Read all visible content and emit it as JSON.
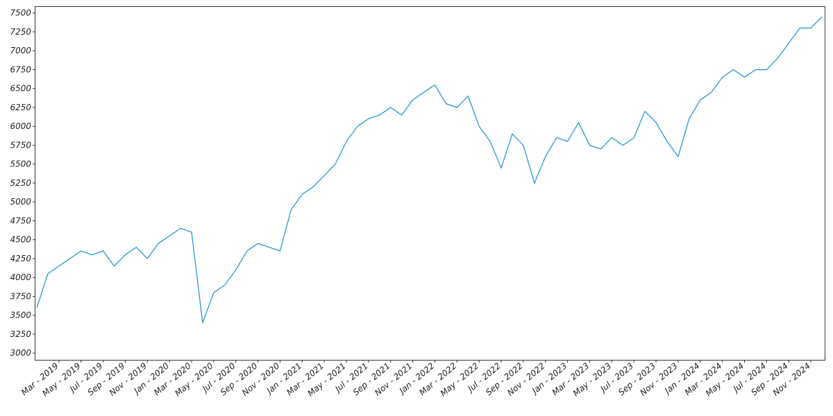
{
  "chart_data": {
    "type": "line",
    "x": [
      "2019-01",
      "2019-02",
      "2019-03",
      "2019-04",
      "2019-05",
      "2019-06",
      "2019-07",
      "2019-08",
      "2019-09",
      "2019-10",
      "2019-11",
      "2019-12",
      "2020-01",
      "2020-02",
      "2020-03",
      "2020-04",
      "2020-05",
      "2020-06",
      "2020-07",
      "2020-08",
      "2020-09",
      "2020-10",
      "2020-11",
      "2020-12",
      "2021-01",
      "2021-02",
      "2021-03",
      "2021-04",
      "2021-05",
      "2021-06",
      "2021-07",
      "2021-08",
      "2021-09",
      "2021-10",
      "2021-11",
      "2021-12",
      "2022-01",
      "2022-02",
      "2022-03",
      "2022-04",
      "2022-05",
      "2022-06",
      "2022-07",
      "2022-08",
      "2022-09",
      "2022-10",
      "2022-11",
      "2022-12",
      "2023-01",
      "2023-02",
      "2023-03",
      "2023-04",
      "2023-05",
      "2023-06",
      "2023-07",
      "2023-08",
      "2023-09",
      "2023-10",
      "2023-11",
      "2023-12",
      "2024-01",
      "2024-02",
      "2024-03",
      "2024-04",
      "2024-05",
      "2024-06",
      "2024-07",
      "2024-08",
      "2024-09",
      "2024-10",
      "2024-11",
      "2024-12"
    ],
    "series": [
      {
        "color": "#1a8fd6",
        "values": [
          3600,
          4050,
          4150,
          4250,
          4350,
          4300,
          4350,
          4150,
          4300,
          4400,
          4250,
          4450,
          4550,
          4650,
          4600,
          3400,
          3800,
          3900,
          4100,
          4350,
          4450,
          4400,
          4350,
          4900,
          5100,
          5200,
          5350,
          5500,
          5800,
          6000,
          6100,
          6150,
          6250,
          6150,
          6350,
          6450,
          6550,
          6300,
          6250,
          6400,
          6000,
          5800,
          5450,
          5900,
          5750,
          5250,
          5600,
          5850,
          5800,
          6050,
          5750,
          5700,
          5850,
          5750,
          5850,
          6200,
          6050,
          5800,
          5600,
          6100,
          6350,
          6450,
          6650,
          6750,
          6650,
          6750,
          6750,
          6900,
          7100,
          7300,
          7300,
          7450
        ]
      }
    ],
    "xlim": [
      "2019-01",
      "2024-12"
    ],
    "xticks": [
      {
        "value": "2019-03",
        "label": "Mar - 2019"
      },
      {
        "value": "2019-05",
        "label": "May - 2019"
      },
      {
        "value": "2019-07",
        "label": "Jul - 2019"
      },
      {
        "value": "2019-09",
        "label": "Sep - 2019"
      },
      {
        "value": "2019-11",
        "label": "Nov - 2019"
      },
      {
        "value": "2020-01",
        "label": "Jan - 2020"
      },
      {
        "value": "2020-03",
        "label": "Mar - 2020"
      },
      {
        "value": "2020-05",
        "label": "May - 2020"
      },
      {
        "value": "2020-07",
        "label": "Jul - 2020"
      },
      {
        "value": "2020-09",
        "label": "Sep - 2020"
      },
      {
        "value": "2020-11",
        "label": "Nov - 2020"
      },
      {
        "value": "2021-01",
        "label": "Jan - 2021"
      },
      {
        "value": "2021-03",
        "label": "Mar - 2021"
      },
      {
        "value": "2021-05",
        "label": "May - 2021"
      },
      {
        "value": "2021-07",
        "label": "Jul - 2021"
      },
      {
        "value": "2021-09",
        "label": "Sep - 2021"
      },
      {
        "value": "2021-11",
        "label": "Nov - 2021"
      },
      {
        "value": "2022-01",
        "label": "Jan - 2022"
      },
      {
        "value": "2022-03",
        "label": "Mar - 2022"
      },
      {
        "value": "2022-05",
        "label": "May - 2022"
      },
      {
        "value": "2022-07",
        "label": "Jul - 2022"
      },
      {
        "value": "2022-09",
        "label": "Sep - 2022"
      },
      {
        "value": "2022-11",
        "label": "Nov - 2022"
      },
      {
        "value": "2023-01",
        "label": "Jan - 2023"
      },
      {
        "value": "2023-03",
        "label": "Mar - 2023"
      },
      {
        "value": "2023-05",
        "label": "May - 2023"
      },
      {
        "value": "2023-07",
        "label": "Jul - 2023"
      },
      {
        "value": "2023-09",
        "label": "Sep - 2023"
      },
      {
        "value": "2023-11",
        "label": "Nov - 2023"
      },
      {
        "value": "2024-01",
        "label": "Jan - 2024"
      },
      {
        "value": "2024-03",
        "label": "Mar - 2024"
      },
      {
        "value": "2024-05",
        "label": "May - 2024"
      },
      {
        "value": "2024-07",
        "label": "Jul - 2024"
      },
      {
        "value": "2024-09",
        "label": "Sep - 2024"
      },
      {
        "value": "2024-11",
        "label": "Nov - 2024"
      }
    ],
    "ylim": [
      2910,
      7580
    ],
    "yticks": [
      3000,
      3250,
      3500,
      3750,
      4000,
      4250,
      4500,
      4750,
      5000,
      5250,
      5500,
      5750,
      6000,
      6250,
      6500,
      6750,
      7000,
      7250,
      7500
    ],
    "grid": false
  }
}
